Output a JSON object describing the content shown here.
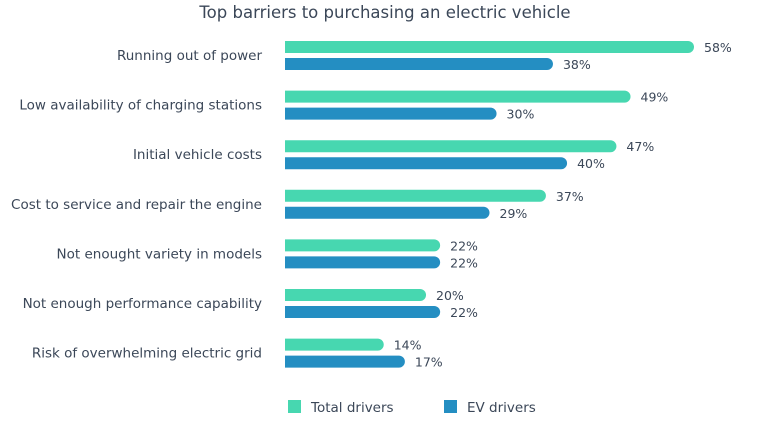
{
  "chart_data": {
    "type": "bar",
    "orientation": "horizontal",
    "title": "Top barriers to purchasing an electric vehicle",
    "categories": [
      "Running out of power",
      "Low availability of charging stations",
      "Initial vehicle costs",
      "Cost to service and repair the engine",
      "Not enought variety in models",
      "Not enough performance capability",
      "Risk of overwhelming electric grid"
    ],
    "series": [
      {
        "name": "Total drivers",
        "color": "#47d7b0",
        "values": [
          58,
          49,
          47,
          37,
          22,
          20,
          14
        ]
      },
      {
        "name": "EV drivers",
        "color": "#248ec2",
        "values": [
          38,
          30,
          40,
          29,
          22,
          22,
          17
        ]
      }
    ],
    "value_suffix": "%",
    "xlim": [
      0,
      100
    ],
    "grid": false,
    "axes_visible": false,
    "legend_position": "bottom"
  }
}
